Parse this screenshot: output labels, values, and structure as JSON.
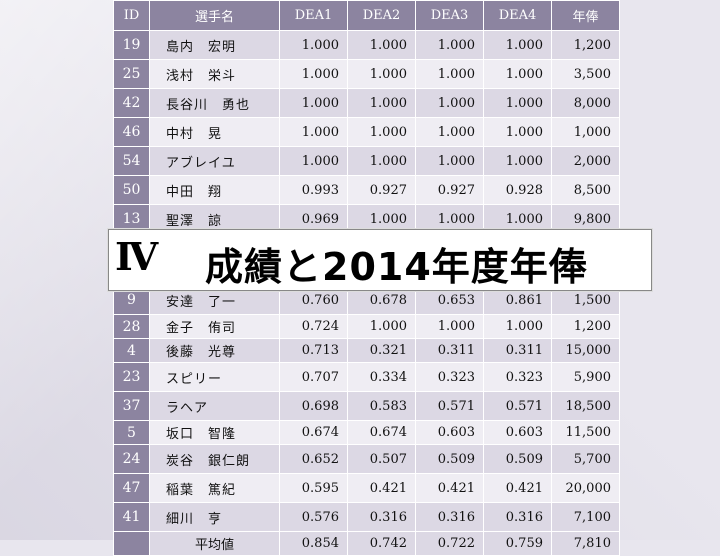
{
  "headers": [
    "ID",
    "選手名",
    "DEA1",
    "DEA2",
    "DEA3",
    "DEA4",
    "年俸"
  ],
  "rows_top": [
    {
      "id": "19",
      "name": "島内　宏明",
      "d1": "1.000",
      "d2": "1.000",
      "d3": "1.000",
      "d4": "1.000",
      "salary": "1,200"
    },
    {
      "id": "25",
      "name": "浅村　栄斗",
      "d1": "1.000",
      "d2": "1.000",
      "d3": "1.000",
      "d4": "1.000",
      "salary": "3,500"
    },
    {
      "id": "42",
      "name": "長谷川　勇也",
      "d1": "1.000",
      "d2": "1.000",
      "d3": "1.000",
      "d4": "1.000",
      "salary": "8,000"
    },
    {
      "id": "46",
      "name": "中村　晃",
      "d1": "1.000",
      "d2": "1.000",
      "d3": "1.000",
      "d4": "1.000",
      "salary": "1,000"
    },
    {
      "id": "54",
      "name": "アブレイユ",
      "d1": "1.000",
      "d2": "1.000",
      "d3": "1.000",
      "d4": "1.000",
      "salary": "2,000"
    },
    {
      "id": "50",
      "name": "中田　翔",
      "d1": "0.993",
      "d2": "0.927",
      "d3": "0.927",
      "d4": "0.928",
      "salary": "8,500"
    },
    {
      "id": "13",
      "name": "聖澤　諒",
      "d1": "0.969",
      "d2": "1.000",
      "d3": "1.000",
      "d4": "1.000",
      "salary": "9,800"
    }
  ],
  "rows_bottom": [
    {
      "id": "9",
      "name": "安達　了一",
      "d1": "0.760",
      "d2": "0.678",
      "d3": "0.653",
      "d4": "0.861",
      "salary": "1,500"
    },
    {
      "id": "28",
      "name": "金子　侑司",
      "d1": "0.724",
      "d2": "1.000",
      "d3": "1.000",
      "d4": "1.000",
      "salary": "1,200"
    },
    {
      "id": "4",
      "name": "後藤　光尊",
      "d1": "0.713",
      "d2": "0.321",
      "d3": "0.311",
      "d4": "0.311",
      "salary": "15,000"
    },
    {
      "id": "23",
      "name": "スピリー",
      "d1": "0.707",
      "d2": "0.334",
      "d3": "0.323",
      "d4": "0.323",
      "salary": "5,900"
    },
    {
      "id": "37",
      "name": "ラヘア",
      "d1": "0.698",
      "d2": "0.583",
      "d3": "0.571",
      "d4": "0.571",
      "salary": "18,500"
    },
    {
      "id": "5",
      "name": "坂口　智隆",
      "d1": "0.674",
      "d2": "0.674",
      "d3": "0.603",
      "d4": "0.603",
      "salary": "11,500"
    },
    {
      "id": "24",
      "name": "炭谷　銀仁朗",
      "d1": "0.652",
      "d2": "0.507",
      "d3": "0.509",
      "d4": "0.509",
      "salary": "5,700"
    },
    {
      "id": "47",
      "name": "稲葉　篤紀",
      "d1": "0.595",
      "d2": "0.421",
      "d3": "0.421",
      "d4": "0.421",
      "salary": "20,000"
    },
    {
      "id": "41",
      "name": "細川　亨",
      "d1": "0.576",
      "d2": "0.316",
      "d3": "0.316",
      "d4": "0.316",
      "salary": "7,100"
    }
  ],
  "average_row": {
    "label": "平均値",
    "d1": "0.854",
    "d2": "0.742",
    "d3": "0.722",
    "d4": "0.759",
    "salary": "7,810"
  },
  "banner": {
    "roman": "Ⅳ",
    "title": "成績と2014年度年俸"
  }
}
